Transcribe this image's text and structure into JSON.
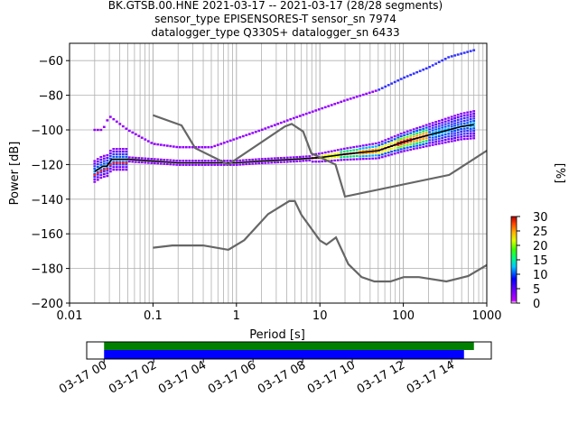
{
  "title_lines": [
    "BK.GTSB.00.HNE   2021-03-17 -- 2021-03-17  (28/28 segments)",
    "sensor_type EPISENSORES-T sensor_sn 7974",
    "datalogger_type Q330S+ datalogger_sn 6433"
  ],
  "chart_data": {
    "type": "heatmap",
    "xlabel": "Period [s]",
    "ylabel": "Power [dB]",
    "x_scale": "log",
    "xlim": [
      0.01,
      1000
    ],
    "ylim": [
      -200,
      -50
    ],
    "x_ticks": [
      0.01,
      0.1,
      1,
      10,
      100,
      1000
    ],
    "x_tick_labels": [
      "0.01",
      "0.1",
      "1",
      "10",
      "100",
      "1000"
    ],
    "y_ticks": [
      -200,
      -180,
      -160,
      -140,
      -120,
      -100,
      -80,
      -60
    ],
    "y_tick_labels": [
      "−200",
      "−180",
      "−160",
      "−140",
      "−120",
      "−100",
      "−80",
      "−60"
    ],
    "grid": true,
    "colorbar": {
      "label": "[%]",
      "range": [
        0,
        30
      ],
      "ticks": [
        0,
        5,
        10,
        15,
        20,
        25,
        30
      ],
      "tick_labels": [
        "0",
        "5",
        "10",
        "15",
        "20",
        "25",
        "30"
      ]
    },
    "series": [
      {
        "role": "mean",
        "color": "#000000",
        "x": [
          0.02,
          0.025,
          0.028,
          0.032,
          0.05,
          0.1,
          0.2,
          0.5,
          1,
          2,
          5,
          10,
          20,
          50,
          100,
          200,
          500,
          700
        ],
        "y": [
          -124,
          -121,
          -121,
          -117,
          -117,
          -118,
          -119,
          -119,
          -119,
          -118,
          -117,
          -116,
          -114,
          -112,
          -107,
          -103,
          -98,
          -97
        ]
      },
      {
        "role": "noise-model-high",
        "color": "#666666",
        "x": [
          0.1,
          0.22,
          0.32,
          0.8,
          3.8,
          4.6,
          6.3,
          7.9,
          15.4,
          20,
          354.8,
          1000
        ],
        "y": [
          -91.5,
          -97.4,
          -110.5,
          -120,
          -98,
          -96.5,
          -101,
          -113.5,
          -120,
          -138.5,
          -126,
          -112
        ]
      },
      {
        "role": "noise-model-low",
        "color": "#666666",
        "x": [
          0.1,
          0.17,
          0.4,
          0.8,
          1.24,
          2.4,
          4.3,
          5,
          6,
          10,
          12,
          15.6,
          21.9,
          31.6,
          45,
          70,
          101,
          154,
          328,
          600,
          1000
        ],
        "y": [
          -168,
          -166.7,
          -166.7,
          -169.2,
          -163.7,
          -148.6,
          -141.1,
          -141.1,
          -149,
          -163.8,
          -166.2,
          -162.1,
          -177.5,
          -185,
          -187.5,
          -187.5,
          -185,
          -185,
          -187.5,
          -184.4,
          -178
        ]
      }
    ],
    "upper_band": {
      "x": [
        0.025,
        0.03,
        0.05,
        0.1,
        0.2,
        0.5,
        1,
        2,
        5,
        10,
        20,
        50,
        100,
        200,
        350,
        700
      ],
      "y": [
        -100,
        -92,
        -100,
        -108,
        -110,
        -110,
        -105,
        -100,
        -93,
        -88,
        -83,
        -77,
        -70,
        -64,
        -58,
        -54
      ]
    },
    "timeline": {
      "tick_labels": [
        "03-17 00",
        "03-17 02",
        "03-17 04",
        "03-17 06",
        "03-17 08",
        "03-17 10",
        "03-17 12",
        "03-17 14"
      ],
      "hours_range": [
        -0.7,
        15.6
      ],
      "green_bar_hours": [
        0,
        14.9
      ],
      "blue_bar_hours": [
        0,
        14.5
      ],
      "green_color": "#008000",
      "blue_color": "#0000ff"
    }
  }
}
